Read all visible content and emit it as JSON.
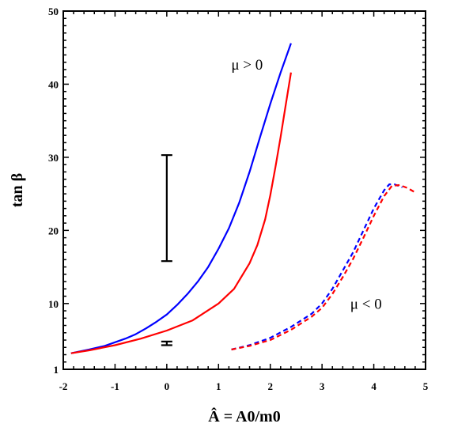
{
  "chart_data": {
    "type": "line",
    "xlabel": "Â = A0/m0",
    "ylabel": "tan β",
    "xlim": [
      -2,
      5
    ],
    "ylim": [
      1,
      50
    ],
    "grid": false,
    "x_ticks": [
      -2,
      -1,
      0,
      1,
      2,
      3,
      4,
      5
    ],
    "x_tick_labels": [
      "-2",
      "-1",
      "0",
      "1",
      "2",
      "3",
      "4",
      "5"
    ],
    "y_ticks": [
      1,
      10,
      20,
      30,
      40,
      50
    ],
    "y_tick_labels": [
      "1",
      "10",
      "20",
      "30",
      "40",
      "50"
    ],
    "annotations": [
      {
        "text": "μ > 0",
        "x": 1.55,
        "y": 42.0
      },
      {
        "text": "μ < 0",
        "x": 3.85,
        "y": 9.3
      }
    ],
    "series": [
      {
        "color": "#0000ff",
        "style": "solid",
        "x": [
          -1.85,
          -1.5,
          -1.2,
          -1.0,
          -0.8,
          -0.6,
          -0.4,
          -0.2,
          0.0,
          0.2,
          0.4,
          0.6,
          0.8,
          1.0,
          1.2,
          1.4,
          1.6,
          1.8,
          2.0,
          2.2,
          2.4
        ],
        "y": [
          3.2,
          3.7,
          4.2,
          4.7,
          5.2,
          5.8,
          6.6,
          7.5,
          8.5,
          9.8,
          11.3,
          13.0,
          15.0,
          17.5,
          20.3,
          23.8,
          28.0,
          32.7,
          37.3,
          41.6,
          45.6
        ]
      },
      {
        "color": "#ff0000",
        "style": "solid",
        "x": [
          -1.85,
          -1.5,
          -1.0,
          -0.5,
          0.0,
          0.5,
          1.0,
          1.3,
          1.6,
          1.75,
          1.9,
          2.0,
          2.1,
          2.2,
          2.3,
          2.4
        ],
        "y": [
          3.2,
          3.6,
          4.3,
          5.2,
          6.3,
          7.7,
          10.0,
          12.0,
          15.5,
          18.0,
          21.5,
          24.8,
          28.7,
          32.8,
          37.2,
          41.6
        ]
      },
      {
        "color": "#0000ff",
        "style": "dashed",
        "x": [
          1.25,
          1.6,
          2.0,
          2.4,
          2.8,
          3.0,
          3.2,
          3.4,
          3.6,
          3.8,
          4.0,
          4.2,
          4.3,
          4.4,
          4.55
        ],
        "y": [
          3.7,
          4.3,
          5.3,
          6.8,
          8.6,
          10.0,
          12.0,
          14.5,
          17.0,
          20.0,
          23.0,
          25.5,
          26.3,
          26.3,
          25.9
        ]
      },
      {
        "color": "#ff0000",
        "style": "dashed",
        "x": [
          1.25,
          1.6,
          2.0,
          2.4,
          2.8,
          3.0,
          3.2,
          3.4,
          3.6,
          3.8,
          4.0,
          4.2,
          4.35,
          4.5,
          4.65,
          4.8
        ],
        "y": [
          3.7,
          4.2,
          5.0,
          6.4,
          8.2,
          9.4,
          11.3,
          13.6,
          16.1,
          19.0,
          22.0,
          24.7,
          26.1,
          26.2,
          25.8,
          25.2
        ]
      }
    ],
    "error_bars": [
      {
        "x": 0.0,
        "y_low": 15.8,
        "y_high": 30.3,
        "color": "#000000"
      },
      {
        "x": 0.0,
        "y_low": 4.3,
        "y_high": 4.8,
        "color": "#000000"
      }
    ]
  }
}
